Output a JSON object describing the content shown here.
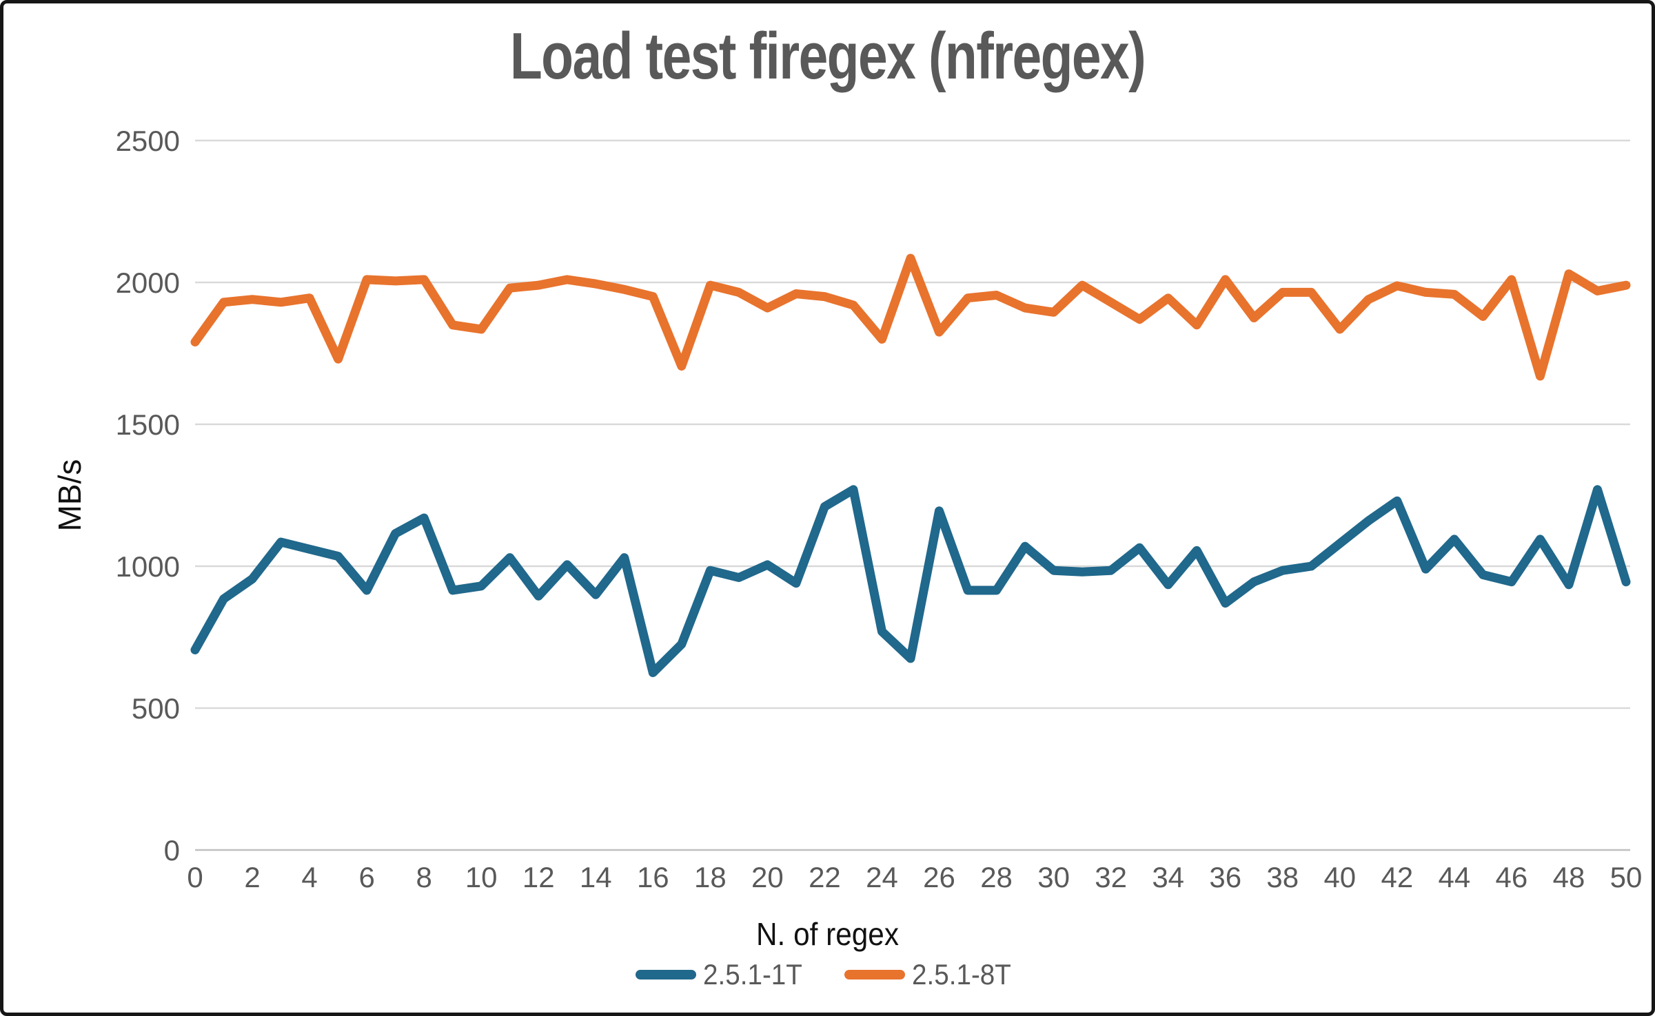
{
  "chart_data": {
    "type": "line",
    "title": "Load test firegex (nfregex)",
    "xlabel": "N. of regex",
    "ylabel": "MB/s",
    "x_range": [
      0,
      50
    ],
    "x_tick_step": 2,
    "ylim": [
      0,
      2500
    ],
    "y_tick_step": 500,
    "grid": "horizontal-only",
    "legend_position": "bottom-center",
    "colors": {
      "gridline": "#d9d9d9",
      "axis_line": "#bfbfbf",
      "tick_label": "#595959",
      "title": "#595959",
      "axis_title": "#111111",
      "background": "#ffffff",
      "border": "#161616"
    },
    "series": [
      {
        "name": "2.5.1-1T",
        "color": "#20688C",
        "values": [
          705,
          885,
          955,
          1085,
          1060,
          1035,
          915,
          1115,
          1170,
          915,
          930,
          1030,
          895,
          1005,
          900,
          1030,
          625,
          725,
          985,
          960,
          1005,
          940,
          1210,
          1270,
          770,
          675,
          1195,
          915,
          915,
          1070,
          985,
          980,
          985,
          1065,
          935,
          1055,
          870,
          945,
          985,
          1000,
          1080,
          1160,
          1230,
          990,
          1095,
          970,
          945,
          1095,
          935,
          1270,
          945
        ]
      },
      {
        "name": "2.5.1-8T",
        "color": "#E8732D",
        "values": [
          1790,
          1930,
          1940,
          1930,
          1945,
          1730,
          2010,
          2005,
          2010,
          1850,
          1835,
          1980,
          1990,
          2010,
          1995,
          1975,
          1950,
          1705,
          1990,
          1965,
          1910,
          1960,
          1950,
          1920,
          1800,
          2085,
          1825,
          1945,
          1955,
          1910,
          1895,
          1990,
          1930,
          1870,
          1945,
          1850,
          2010,
          1875,
          1965,
          1965,
          1835,
          1940,
          1988,
          1965,
          1958,
          1880,
          2010,
          1670,
          2030,
          1970,
          1990
        ]
      }
    ]
  }
}
